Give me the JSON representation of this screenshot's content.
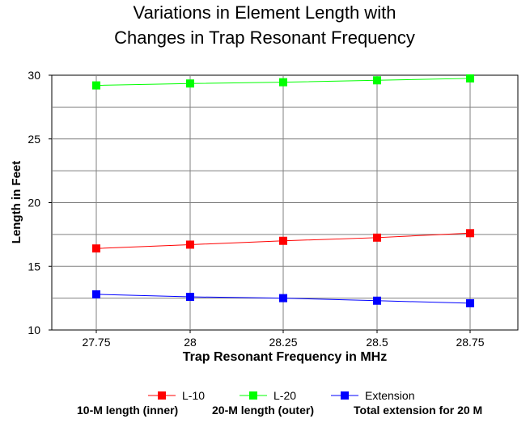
{
  "chart_data": {
    "type": "line",
    "title_lines": [
      "Variations in Element Length with",
      "Changes in Trap Resonant Frequency"
    ],
    "xlabel": "Trap Resonant Frequency in MHz",
    "ylabel": "Length in Feet",
    "categories": [
      "27.75",
      "28",
      "28.25",
      "28.5",
      "28.75"
    ],
    "ylim": [
      10,
      30
    ],
    "yticks": [
      "10",
      "15",
      "20",
      "25",
      "30"
    ],
    "grid": true,
    "legend_position": "bottom",
    "series": [
      {
        "name": "L-10",
        "description": "10-M length (inner)",
        "color": "#ff0000",
        "values": [
          16.4,
          16.7,
          17.0,
          17.25,
          17.6
        ]
      },
      {
        "name": "L-20",
        "description": "20-M length (outer)",
        "color": "#00ff00",
        "values": [
          29.2,
          29.35,
          29.45,
          29.6,
          29.75
        ]
      },
      {
        "name": "Extension",
        "description": "Total extension for 20 M",
        "color": "#0000ff",
        "values": [
          12.8,
          12.6,
          12.5,
          12.3,
          12.1
        ]
      }
    ]
  }
}
